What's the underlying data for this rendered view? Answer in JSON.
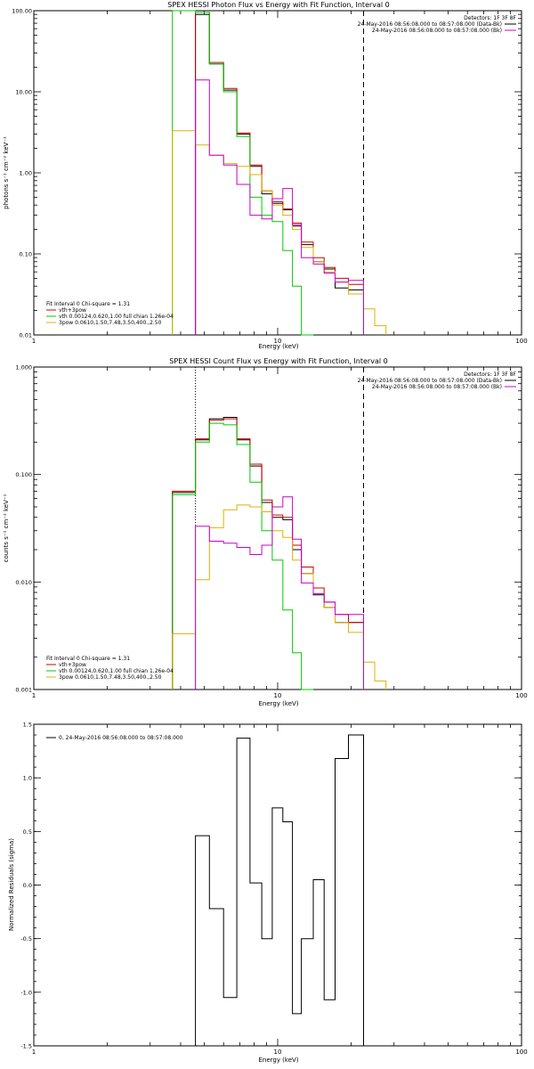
{
  "chart_data": [
    {
      "type": "line",
      "title": "SPEX HESSI Photon Flux vs Energy with Fit Function, Interval 0",
      "xlabel": "Energy (keV)",
      "ylabel": "photons s⁻¹ cm⁻² keV⁻¹",
      "xscale": "log",
      "yscale": "log",
      "xlim": [
        1,
        100
      ],
      "ylim": [
        0.01,
        100
      ],
      "xticks": [
        {
          "v": 1,
          "label": "1"
        },
        {
          "v": 10,
          "label": "10"
        },
        {
          "v": 100,
          "label": "100"
        }
      ],
      "yticks": [
        {
          "v": 0.01,
          "label": "0.01"
        },
        {
          "v": 0.1,
          "label": "0.10"
        },
        {
          "v": 1,
          "label": "1.00"
        },
        {
          "v": 10,
          "label": "10.00"
        },
        {
          "v": 100,
          "label": "100.00"
        }
      ],
      "vlines": [
        {
          "x": 4.6,
          "style": "dotted",
          "color": "#cc00cc"
        },
        {
          "x": 22.5,
          "style": "dashed",
          "color": "#000000"
        }
      ],
      "top_right": [
        "Detectors: 1F 3F 8F",
        "24-May-2016 08:56:08.000 to 08:57:08.000 (Data-Bk)",
        "24-May-2016 08:56:08.000 to 08:57:08.000 (Bk)"
      ],
      "top_right_colors": [
        "",
        "#000000",
        "#cc00cc"
      ],
      "bottom_left": [
        {
          "text": "Fit Interval 0   Chi-square = 1.31",
          "color": ""
        },
        {
          "text": "vth+3pow",
          "color": "#cc0000"
        },
        {
          "text": "vth 0.00124,0.620,1.00   full chian 1.26e-04",
          "color": "#00cc00"
        },
        {
          "text": "3pow 0.0610,1.50,7.48,3.50,400.,2.50",
          "color": "#e0b000"
        }
      ],
      "edges": [
        3.7,
        4.6,
        5.25,
        6.0,
        6.8,
        7.7,
        8.6,
        9.5,
        10.5,
        11.5,
        12.5,
        14.0,
        15.5,
        17.2,
        19.5,
        22.5,
        25.0,
        27.8
      ],
      "series": [
        {
          "name": "Data-Bk",
          "color": "#000000",
          "values": [
            null,
            90,
            22,
            10.5,
            3.0,
            1.2,
            0.55,
            0.42,
            0.35,
            0.22,
            0.13,
            0.08,
            0.065,
            0.038,
            0.036,
            null,
            null
          ]
        },
        {
          "name": "vth+3pow",
          "color": "#cc0000",
          "values": [
            null,
            95,
            23,
            11,
            3.1,
            1.25,
            0.6,
            0.44,
            0.36,
            0.24,
            0.14,
            0.09,
            0.068,
            0.05,
            0.042,
            null,
            null
          ]
        },
        {
          "name": "vth",
          "color": "#00cc00",
          "values": [
            110,
            95,
            22,
            10,
            2.8,
            0.5,
            0.3,
            0.25,
            0.11,
            0.04,
            0.003,
            null,
            null,
            null,
            null,
            null,
            null
          ]
        },
        {
          "name": "3pow",
          "color": "#e0b000",
          "values": [
            3.3,
            2.2,
            1.65,
            1.3,
            1.2,
            0.95,
            0.6,
            0.4,
            0.3,
            0.2,
            0.12,
            0.08,
            0.06,
            0.045,
            0.032,
            0.021,
            0.013
          ]
        },
        {
          "name": "Bk",
          "color": "#cc00cc",
          "values": [
            null,
            14,
            1.65,
            1.25,
            0.72,
            0.3,
            0.27,
            0.48,
            0.64,
            0.23,
            0.09,
            0.075,
            0.058,
            0.045,
            0.047,
            null,
            null
          ]
        }
      ]
    },
    {
      "type": "line",
      "title": "SPEX HESSI Count Flux vs Energy with Fit Function, Interval 0",
      "xlabel": "Energy (keV)",
      "ylabel": "counts s⁻¹ cm⁻² keV⁻¹",
      "xscale": "log",
      "yscale": "log",
      "xlim": [
        1,
        100
      ],
      "ylim": [
        0.001,
        1
      ],
      "xticks": [
        {
          "v": 1,
          "label": "1"
        },
        {
          "v": 10,
          "label": "10"
        },
        {
          "v": 100,
          "label": "100"
        }
      ],
      "yticks": [
        {
          "v": 0.001,
          "label": "0.001"
        },
        {
          "v": 0.01,
          "label": "0.010"
        },
        {
          "v": 0.1,
          "label": "0.100"
        },
        {
          "v": 1,
          "label": "1.000"
        }
      ],
      "vlines": [
        {
          "x": 4.6,
          "style": "dotted",
          "color": "#000000"
        },
        {
          "x": 22.5,
          "style": "dashed",
          "color": "#000000"
        }
      ],
      "top_right": [
        "Detectors: 1F 3F 8F",
        "24-May-2016 08:56:08.000 to 08:57:08.000 (Data-Bk)",
        "24-May-2016 08:56:08.000 to 08:57:08.000 (Bk)"
      ],
      "top_right_colors": [
        "",
        "#000000",
        "#cc00cc"
      ],
      "bottom_left": [
        {
          "text": "Fit Interval 0   Chi-square = 1.31",
          "color": ""
        },
        {
          "text": "vth+3pow",
          "color": "#cc0000"
        },
        {
          "text": "vth 0.00124,0.620,1.00   full chian 1.26e-04",
          "color": "#00cc00"
        },
        {
          "text": "3pow 0.0610,1.50,7.48,3.50,400.,2.50",
          "color": "#e0b000"
        }
      ],
      "edges": [
        3.7,
        4.6,
        5.25,
        6.0,
        6.8,
        7.7,
        8.6,
        9.5,
        10.5,
        11.5,
        12.5,
        14.0,
        15.5,
        17.2,
        19.5,
        22.5,
        25.0,
        27.8
      ],
      "series": [
        {
          "name": "Data-Bk",
          "color": "#000000",
          "values": [
            0.068,
            0.21,
            0.33,
            0.34,
            0.21,
            0.12,
            0.055,
            0.04,
            0.038,
            0.02,
            0.012,
            0.0076,
            0.0058,
            0.0042,
            0.0042,
            null,
            null
          ]
        },
        {
          "name": "vth+3pow",
          "color": "#cc0000",
          "values": [
            0.07,
            0.215,
            0.32,
            0.33,
            0.215,
            0.125,
            0.058,
            0.042,
            0.04,
            0.022,
            0.0138,
            0.0088,
            0.0065,
            0.005,
            0.0042,
            null,
            null
          ]
        },
        {
          "name": "vth",
          "color": "#00cc00",
          "values": [
            0.065,
            0.2,
            0.3,
            0.29,
            0.19,
            0.085,
            0.03,
            0.016,
            0.0055,
            0.0022,
            0.0008,
            null,
            null,
            null,
            null,
            null,
            null
          ]
        },
        {
          "name": "3pow",
          "color": "#e0b000",
          "values": [
            0.0033,
            0.0105,
            0.032,
            0.047,
            0.052,
            0.05,
            0.045,
            0.03,
            0.026,
            0.016,
            0.012,
            0.0078,
            0.0058,
            0.0042,
            0.0034,
            0.0018,
            0.0012
          ]
        },
        {
          "name": "Bk",
          "color": "#cc00cc",
          "values": [
            null,
            0.033,
            0.024,
            0.023,
            0.021,
            0.018,
            0.022,
            0.05,
            0.062,
            0.025,
            0.0098,
            0.0078,
            0.0065,
            0.005,
            0.005,
            null,
            null
          ]
        }
      ]
    },
    {
      "type": "line",
      "title": "",
      "xlabel": "Energy (keV)",
      "ylabel": "Normalized Residuals (sigma)",
      "xscale": "log",
      "yscale": "linear",
      "xlim": [
        1,
        100
      ],
      "ylim": [
        -1.5,
        1.5
      ],
      "xticks": [
        {
          "v": 1,
          "label": "1"
        },
        {
          "v": 10,
          "label": "10"
        },
        {
          "v": 100,
          "label": "100"
        }
      ],
      "yticks": [
        {
          "v": -1.5,
          "label": "-1.5"
        },
        {
          "v": -1.0,
          "label": "-1.0"
        },
        {
          "v": -0.5,
          "label": "-0.5"
        },
        {
          "v": 0,
          "label": "0.0"
        },
        {
          "v": 0.5,
          "label": "0.5"
        },
        {
          "v": 1.0,
          "label": "1.0"
        },
        {
          "v": 1.5,
          "label": "1.5"
        }
      ],
      "vlines": [],
      "top_right": [],
      "top_right_colors": [],
      "legend_text": "0, 24-May-2016 08:56:08.000 to 08:57:08.000",
      "edges": [
        4.6,
        5.25,
        6.0,
        6.8,
        7.7,
        8.6,
        9.5,
        10.5,
        11.5,
        12.5,
        14.0,
        15.5,
        17.2,
        19.5,
        22.5
      ],
      "series": [
        {
          "name": "0, 24-May-2016 08:56:08.000 to 08:57:08.000",
          "color": "#000000",
          "values": [
            0.46,
            -0.22,
            -1.05,
            1.37,
            0.02,
            -0.5,
            0.72,
            0.59,
            -1.2,
            -0.5,
            0.05,
            -1.07,
            1.18,
            1.4
          ]
        }
      ]
    }
  ]
}
